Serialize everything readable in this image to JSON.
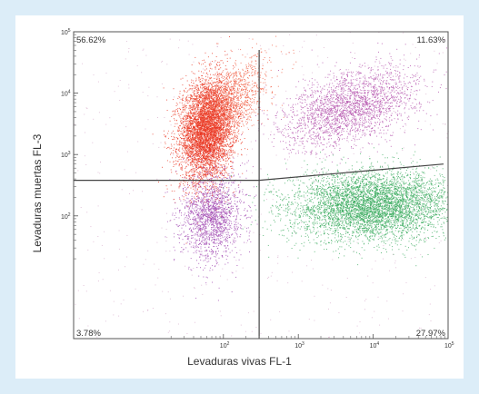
{
  "chart_data": {
    "type": "scatter",
    "xlabel": "Levaduras vivas FL-1",
    "ylabel": "Levaduras muertas FL-3",
    "xscale": "log",
    "yscale": "log",
    "xlim": [
      1,
      100000
    ],
    "ylim": [
      1,
      100000
    ],
    "x_ticks": [
      {
        "value": 100,
        "base": "10",
        "exp": "2"
      },
      {
        "value": 1000,
        "base": "10",
        "exp": "3"
      },
      {
        "value": 10000,
        "base": "10",
        "exp": "4"
      },
      {
        "value": 100000,
        "base": "10",
        "exp": "5"
      }
    ],
    "y_ticks": [
      {
        "value": 100,
        "base": "10",
        "exp": "2"
      },
      {
        "value": 1000,
        "base": "10",
        "exp": "3"
      },
      {
        "value": 10000,
        "base": "10",
        "exp": "4"
      },
      {
        "value": 100000,
        "base": "10",
        "exp": "5"
      }
    ],
    "quadrant_percentages": {
      "upper_left": "56.62%",
      "upper_right": "11.63%",
      "lower_left": "3.78%",
      "lower_right": "27.97%"
    },
    "gates": {
      "vertical_x": 300,
      "horizontal_left_y": 380,
      "sloped_right_from": [
        300,
        380
      ],
      "sloped_right_to": [
        100000,
        700
      ]
    },
    "populations": [
      {
        "quadrant": "upper_left",
        "color": "#e8321e",
        "center": [
          60,
          2500
        ],
        "spread": [
          0.18,
          0.42
        ],
        "corr": 0.15,
        "points": 5200
      },
      {
        "quadrant": "upper_left",
        "color": "#f05a3c",
        "center": [
          110,
          7000
        ],
        "spread": [
          0.28,
          0.35
        ],
        "corr": 0.6,
        "points": 1400
      },
      {
        "quadrant": "upper_right",
        "color": "#b04aa8",
        "center": [
          5000,
          6000
        ],
        "spread": [
          0.45,
          0.32
        ],
        "corr": 0.45,
        "points": 2400
      },
      {
        "quadrant": "lower_left",
        "color": "#9b3fae",
        "center": [
          70,
          100
        ],
        "spread": [
          0.2,
          0.35
        ],
        "corr": 0.1,
        "points": 1700
      },
      {
        "quadrant": "lower_right",
        "color": "#34a85a",
        "center": [
          10000,
          150
        ],
        "spread": [
          0.55,
          0.28
        ],
        "corr": 0.1,
        "points": 5200
      }
    ]
  },
  "colors": {
    "background": "#dcedf8",
    "axes": "#555555",
    "gate": "#444444"
  }
}
